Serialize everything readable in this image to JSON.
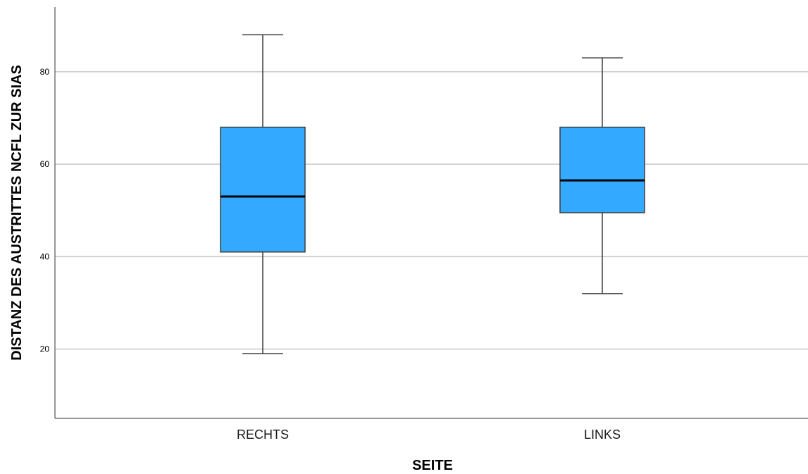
{
  "chart_data": {
    "type": "boxplot",
    "title": "",
    "xlabel": "SEITE",
    "ylabel": "DISTANZ DES AUSTRITTES NCFL ZUR SIAS",
    "ylim": [
      5,
      94
    ],
    "yticks": [
      20,
      40,
      60,
      80
    ],
    "grid": true,
    "categories": [
      "RECHTS",
      "LINKS"
    ],
    "boxes": [
      {
        "category": "RECHTS",
        "min": 19,
        "q1": 41,
        "median": 53,
        "q3": 68,
        "max": 88
      },
      {
        "category": "LINKS",
        "min": 32,
        "q1": 49.5,
        "median": 56.5,
        "q3": 68,
        "max": 83
      }
    ],
    "colors": {
      "box_fill": "#33aaff",
      "box_stroke": "#3c3c3c",
      "median": "#000000",
      "grid": "#c8c8c8",
      "axis": "#333333"
    }
  }
}
